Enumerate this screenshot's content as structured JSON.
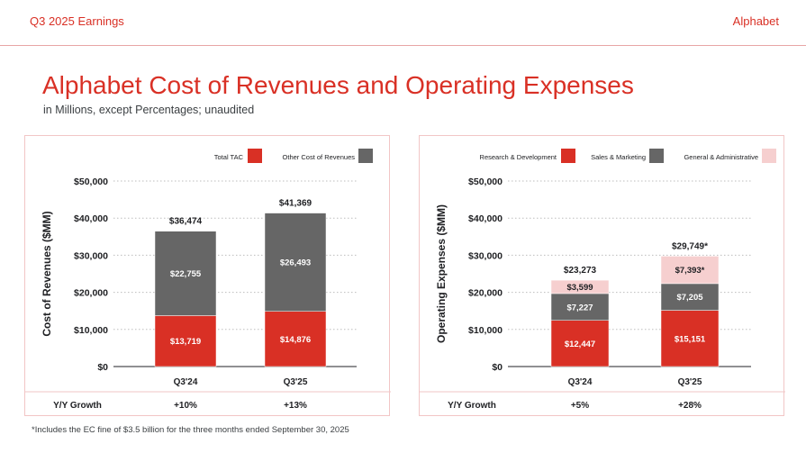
{
  "header": {
    "section": "Q3 2025 Earnings",
    "brand": "Alphabet"
  },
  "title": "Alphabet Cost of Revenues and Operating Expenses",
  "subtitle": "in Millions, except Percentages; unaudited",
  "footnote": "*Includes the EC fine of $3.5 billion for the three months ended September 30, 2025",
  "colors": {
    "red": "#d93025",
    "gray": "#666666",
    "pink": "#f6cfcf",
    "accent": "#d93025"
  },
  "chart_data": [
    {
      "type": "bar",
      "stacked": true,
      "ylabel": "Cost of Revenues ($MM)",
      "ylim": [
        0,
        50000
      ],
      "yticks": [
        {
          "value": 0,
          "label": "$0"
        },
        {
          "value": 10000,
          "label": "$10,000"
        },
        {
          "value": 20000,
          "label": "$20,000"
        },
        {
          "value": 30000,
          "label": "$30,000"
        },
        {
          "value": 40000,
          "label": "$40,000"
        },
        {
          "value": 50000,
          "label": "$50,000"
        }
      ],
      "grid": true,
      "legend_position": "top-right",
      "categories": [
        "Q3'24",
        "Q3'25"
      ],
      "series": [
        {
          "name": "Total TAC",
          "color": "#d93025",
          "values": [
            13719,
            14876
          ],
          "labels": [
            "$13,719",
            "$14,876"
          ]
        },
        {
          "name": "Other Cost of Revenues",
          "color": "#666666",
          "values": [
            22755,
            26493
          ],
          "labels": [
            "$22,755",
            "$26,493"
          ]
        }
      ],
      "totals": [
        "$36,474",
        "$41,369"
      ],
      "totals_values": [
        36474,
        41369
      ],
      "growth_label": "Y/Y Growth",
      "growth": [
        "+10%",
        "+13%"
      ]
    },
    {
      "type": "bar",
      "stacked": true,
      "ylabel": "Operating Expenses ($MM)",
      "ylim": [
        0,
        50000
      ],
      "yticks": [
        {
          "value": 0,
          "label": "$0"
        },
        {
          "value": 10000,
          "label": "$10,000"
        },
        {
          "value": 20000,
          "label": "$20,000"
        },
        {
          "value": 30000,
          "label": "$30,000"
        },
        {
          "value": 40000,
          "label": "$40,000"
        },
        {
          "value": 50000,
          "label": "$50,000"
        }
      ],
      "grid": true,
      "legend_position": "top",
      "categories": [
        "Q3'24",
        "Q3'25"
      ],
      "series": [
        {
          "name": "Research & Development",
          "color": "#d93025",
          "values": [
            12447,
            15151
          ],
          "labels": [
            "$12,447",
            "$15,151"
          ]
        },
        {
          "name": "Sales & Marketing",
          "color": "#666666",
          "values": [
            7227,
            7205
          ],
          "labels": [
            "$7,227",
            "$7,205"
          ]
        },
        {
          "name": "General & Administrative",
          "color": "#f6cfcf",
          "values": [
            3599,
            7393
          ],
          "labels": [
            "$3,599",
            "$7,393*"
          ]
        }
      ],
      "totals": [
        "$23,273",
        "$29,749*"
      ],
      "totals_values": [
        23273,
        29749
      ],
      "growth_label": "Y/Y Growth",
      "growth": [
        "+5%",
        "+28%"
      ]
    }
  ]
}
